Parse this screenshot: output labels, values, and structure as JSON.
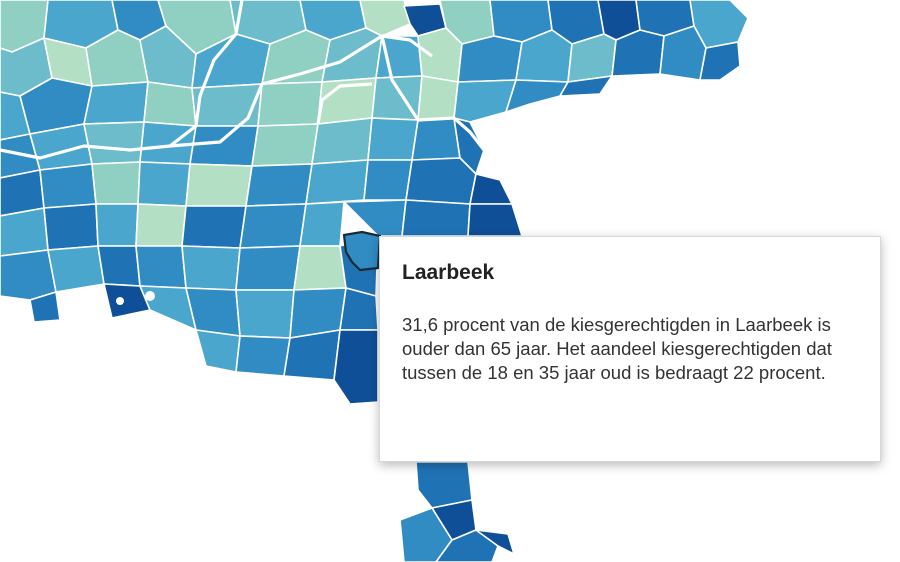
{
  "map": {
    "region": "Laarbeek",
    "highlighted_value_65plus_percent": 31.6,
    "highlighted_value_18_35_percent": 22,
    "palette": {
      "lightest": "#b3e0c4",
      "light": "#8fd0c2",
      "mid_light": "#6cbccc",
      "mid": "#4aa6cd",
      "mid_dark": "#318cc4",
      "dark": "#1f73b5",
      "darkest": "#0f4f97",
      "border": "#ffffff",
      "hover_outline": "#1b2b33"
    }
  },
  "tooltip": {
    "title": "Laarbeek",
    "body": "31,6 procent van de kiesgerechtigden in Laarbeek is ouder dan 65 jaar. Het aandeel kiesgerechtigden dat tussen de 18 en 35 jaar oud is bedraagt 22 procent."
  }
}
